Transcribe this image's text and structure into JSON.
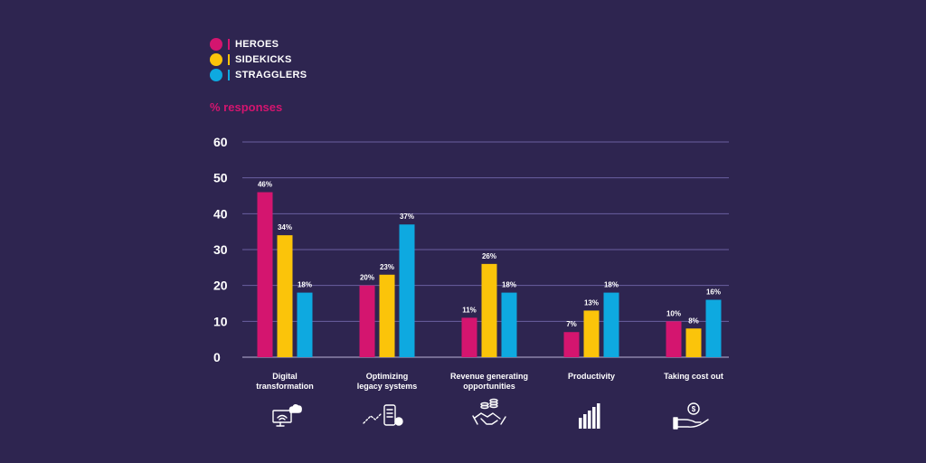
{
  "chart_data": {
    "type": "bar",
    "title": "",
    "ylabel": "% responses",
    "xlabel": "",
    "ylim": [
      0,
      60
    ],
    "yticks": [
      0,
      10,
      20,
      30,
      40,
      50,
      60
    ],
    "grid": true,
    "legend_position": "top-left",
    "categories": [
      [
        "Digital",
        "transformation"
      ],
      [
        "Optimizing",
        "legacy systems"
      ],
      [
        "Revenue generating",
        "opportunities"
      ],
      [
        "Productivity"
      ],
      [
        "Taking cost out"
      ]
    ],
    "category_icons": [
      "monitor-cloud-icon",
      "phone-trend-icon",
      "handshake-coins-icon",
      "bar-growth-icon",
      "hand-coin-icon"
    ],
    "series": [
      {
        "name": "HEROES",
        "color": "#d4156f",
        "values": [
          46,
          20,
          11,
          7,
          10
        ],
        "labels": [
          "46%",
          "20%",
          "11%",
          "7%",
          "10%"
        ]
      },
      {
        "name": "SIDEKICKS",
        "color": "#fbc40a",
        "values": [
          34,
          23,
          26,
          13,
          8
        ],
        "labels": [
          "34%",
          "23%",
          "26%",
          "13%",
          "8%"
        ]
      },
      {
        "name": "STRAGGLERS",
        "color": "#0ea9e0",
        "values": [
          18,
          37,
          18,
          18,
          16
        ],
        "labels": [
          "18%",
          "37%",
          "18%",
          "18%",
          "16%"
        ]
      }
    ]
  }
}
